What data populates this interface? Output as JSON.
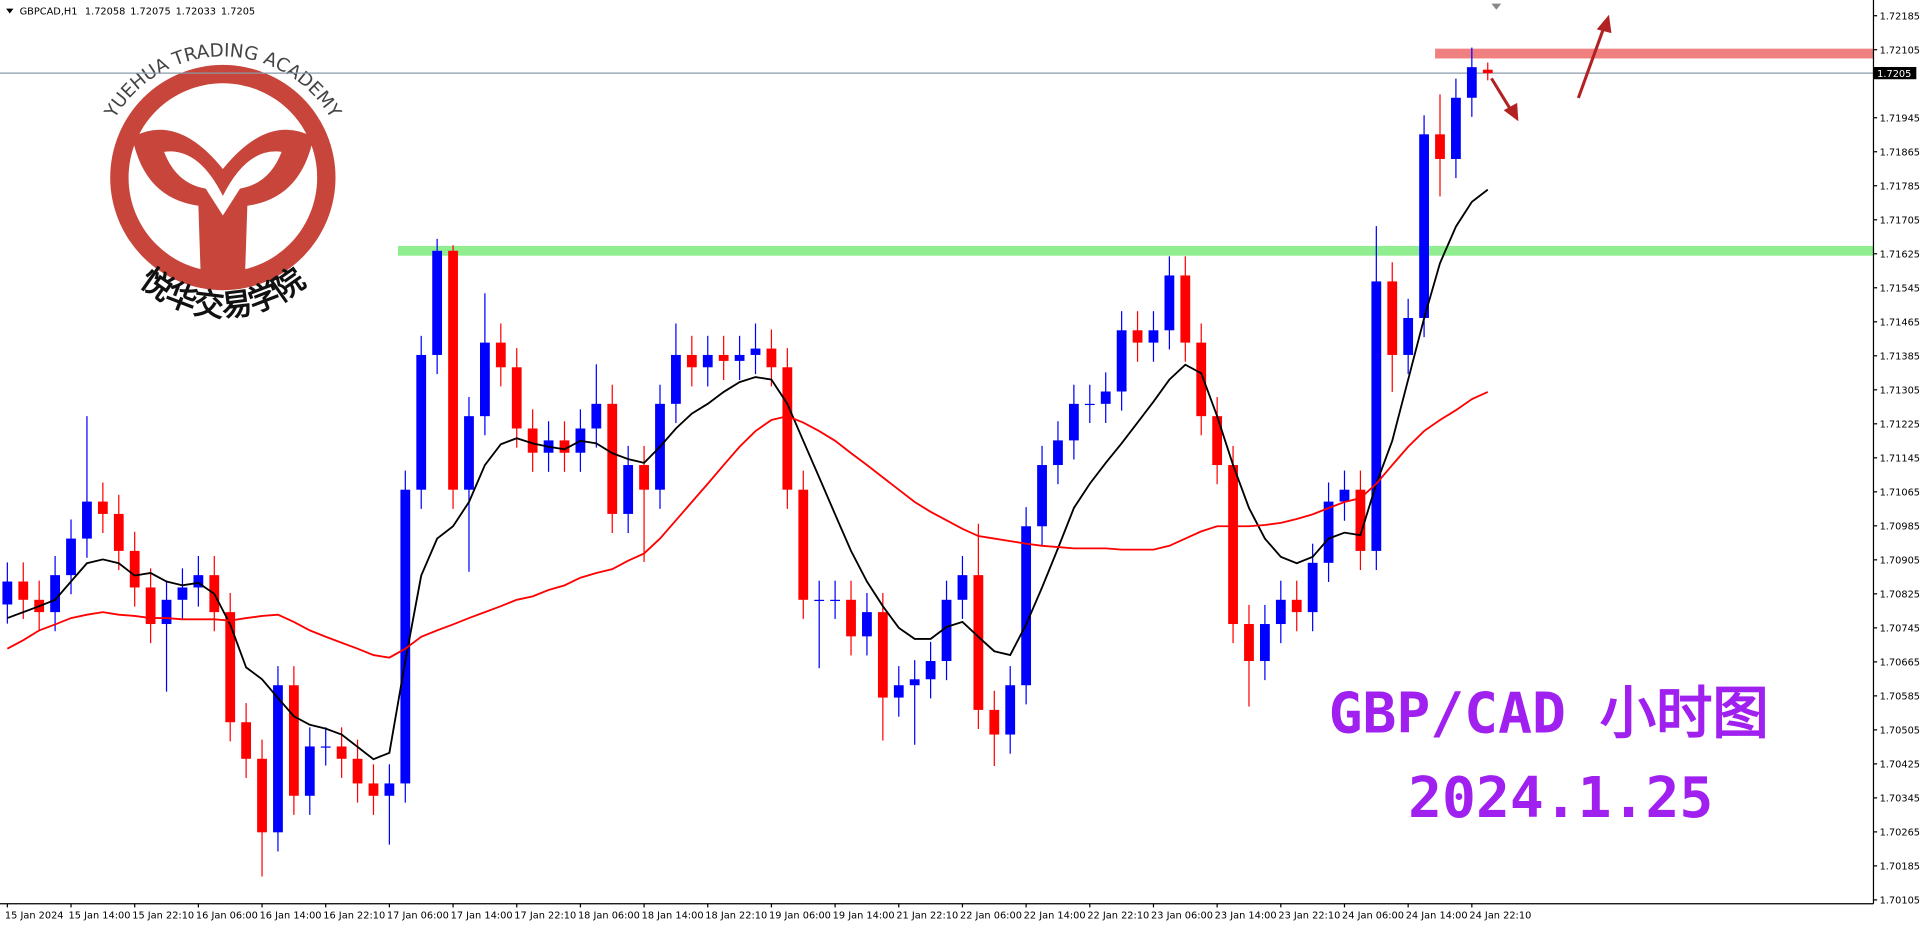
{
  "chart_data": {
    "type": "candlestick",
    "symbol": "GBPCAD,H1",
    "categories": [
      "15 Jan 2024",
      null,
      null,
      null,
      "15 Jan 14:00",
      null,
      null,
      null,
      "15 Jan 22:10",
      null,
      null,
      null,
      "16 Jan 06:00",
      null,
      null,
      null,
      "16 Jan 14:00",
      null,
      null,
      null,
      "16 Jan 22:10",
      null,
      null,
      null,
      "17 Jan 06:00",
      null,
      null,
      null,
      "17 Jan 14:00",
      null,
      null,
      null,
      "17 Jan 22:10",
      null,
      null,
      null,
      "18 Jan 06:00",
      null,
      null,
      null,
      "18 Jan 14:00",
      null,
      null,
      null,
      "18 Jan 22:10",
      null,
      null,
      null,
      "19 Jan 06:00",
      null,
      null,
      null,
      "19 Jan 14:00",
      null,
      null,
      null,
      "21 Jan 22:10",
      null,
      null,
      null,
      "22 Jan 06:00",
      null,
      null,
      null,
      "22 Jan 14:00",
      null,
      null,
      null,
      "22 Jan 22:10",
      null,
      null,
      null,
      "23 Jan 06:00",
      null,
      null,
      null,
      "23 Jan 14:00",
      null,
      null,
      null,
      "23 Jan 22:10",
      null,
      null,
      null,
      "24 Jan 06:00",
      null,
      null,
      null,
      "24 Jan 14:00",
      null,
      null,
      null,
      "24 Jan 22:10",
      null
    ],
    "open": [
      1.708,
      1.70854,
      1.70811,
      1.70782,
      1.70869,
      1.70955,
      1.71042,
      1.71013,
      1.70926,
      1.7084,
      1.70754,
      1.70811,
      1.7084,
      1.70869,
      1.70782,
      1.70523,
      1.70437,
      1.70264,
      1.7061,
      1.7035,
      1.70466,
      1.70466,
      1.70437,
      1.70379,
      1.7035,
      1.70379,
      1.7107,
      1.71387,
      1.71632,
      1.7107,
      1.71243,
      1.71416,
      1.71358,
      1.71214,
      1.71157,
      1.71186,
      1.71157,
      1.71214,
      1.71272,
      1.71013,
      1.71128,
      1.7107,
      1.71272,
      1.71387,
      1.71358,
      1.71387,
      1.71373,
      1.71387,
      1.71402,
      1.71358,
      1.7107,
      1.70811,
      1.70811,
      1.70811,
      1.70725,
      1.70782,
      1.70581,
      1.7061,
      1.70624,
      1.70667,
      1.70811,
      1.70869,
      1.70552,
      1.70494,
      1.7061,
      1.70984,
      1.71128,
      1.71186,
      1.71272,
      1.71272,
      1.71301,
      1.71445,
      1.71416,
      1.71445,
      1.71574,
      1.71416,
      1.71243,
      1.71128,
      1.70754,
      1.70667,
      1.70754,
      1.70811,
      1.70782,
      1.70898,
      1.71042,
      1.7107,
      1.70926,
      1.7156,
      1.71387,
      1.71474,
      1.71906,
      1.71848,
      1.71992,
      1.72058
    ],
    "high": [
      1.70899,
      1.70899,
      1.70856,
      1.70914,
      1.71,
      1.71243,
      1.71087,
      1.71058,
      1.70971,
      1.70885,
      1.70856,
      1.70885,
      1.70914,
      1.70914,
      1.70827,
      1.70568,
      1.70482,
      1.70655,
      1.70655,
      1.70511,
      1.70511,
      1.70511,
      1.70482,
      1.70424,
      1.70424,
      1.71115,
      1.71432,
      1.7166,
      1.71645,
      1.71288,
      1.71532,
      1.71461,
      1.71403,
      1.71259,
      1.71231,
      1.71231,
      1.71259,
      1.71365,
      1.71317,
      1.71173,
      1.71173,
      1.71317,
      1.71461,
      1.71432,
      1.71432,
      1.71432,
      1.71432,
      1.71461,
      1.71447,
      1.71403,
      1.71115,
      1.70856,
      1.70856,
      1.70856,
      1.70827,
      1.70827,
      1.70655,
      1.70669,
      1.70712,
      1.70856,
      1.70914,
      1.7099,
      1.70597,
      1.70655,
      1.71029,
      1.71173,
      1.71231,
      1.71317,
      1.71317,
      1.71346,
      1.7149,
      1.7149,
      1.7149,
      1.71619,
      1.71619,
      1.71461,
      1.71288,
      1.71173,
      1.70799,
      1.70799,
      1.70856,
      1.70856,
      1.70943,
      1.71087,
      1.71115,
      1.71115,
      1.7169,
      1.71605,
      1.71519,
      1.71951,
      1.72,
      1.72037,
      1.7211,
      1.72075
    ],
    "low": [
      1.70755,
      1.70766,
      1.70737,
      1.70737,
      1.70824,
      1.7091,
      1.70968,
      1.70881,
      1.70795,
      1.70709,
      1.70595,
      1.70766,
      1.70795,
      1.70737,
      1.70478,
      1.70392,
      1.7016,
      1.70219,
      1.70305,
      1.70305,
      1.70421,
      1.70392,
      1.70334,
      1.70305,
      1.70235,
      1.70334,
      1.71025,
      1.71342,
      1.71025,
      1.70877,
      1.71198,
      1.71313,
      1.71169,
      1.71112,
      1.71112,
      1.71112,
      1.71112,
      1.71169,
      1.70968,
      1.70968,
      1.709,
      1.71025,
      1.71227,
      1.71313,
      1.71313,
      1.71328,
      1.71328,
      1.71342,
      1.71313,
      1.71025,
      1.70766,
      1.7065,
      1.70766,
      1.7068,
      1.7068,
      1.7048,
      1.70536,
      1.7047,
      1.70579,
      1.70622,
      1.70766,
      1.70507,
      1.7042,
      1.70449,
      1.70565,
      1.70939,
      1.71083,
      1.71141,
      1.71227,
      1.71227,
      1.71256,
      1.71371,
      1.71371,
      1.714,
      1.71371,
      1.71198,
      1.71083,
      1.70709,
      1.7056,
      1.70622,
      1.70709,
      1.70737,
      1.70737,
      1.70853,
      1.70997,
      1.70881,
      1.70881,
      1.713,
      1.71342,
      1.71429,
      1.7176,
      1.71803,
      1.71947,
      1.72033
    ],
    "close": [
      1.70854,
      1.70811,
      1.70782,
      1.70869,
      1.70955,
      1.71042,
      1.71013,
      1.70926,
      1.7084,
      1.70754,
      1.70811,
      1.7084,
      1.70869,
      1.70782,
      1.70523,
      1.70437,
      1.70264,
      1.7061,
      1.7035,
      1.70466,
      1.70466,
      1.70437,
      1.70379,
      1.7035,
      1.70379,
      1.7107,
      1.71387,
      1.71632,
      1.7107,
      1.71243,
      1.71416,
      1.71358,
      1.71214,
      1.71157,
      1.71186,
      1.71157,
      1.71214,
      1.71272,
      1.71013,
      1.71128,
      1.7107,
      1.71272,
      1.71387,
      1.71358,
      1.71387,
      1.71373,
      1.71387,
      1.71402,
      1.71358,
      1.7107,
      1.70811,
      1.70811,
      1.70811,
      1.70725,
      1.70782,
      1.70581,
      1.7061,
      1.70624,
      1.70667,
      1.70811,
      1.70869,
      1.70552,
      1.70494,
      1.7061,
      1.70984,
      1.71128,
      1.71186,
      1.71272,
      1.71272,
      1.71301,
      1.71445,
      1.71416,
      1.71445,
      1.71574,
      1.71416,
      1.71243,
      1.71128,
      1.70754,
      1.70667,
      1.70754,
      1.70811,
      1.70782,
      1.70898,
      1.71042,
      1.7107,
      1.70926,
      1.7156,
      1.71387,
      1.71474,
      1.71906,
      1.71848,
      1.71992,
      1.72064,
      1.7205
    ],
    "up_color": "#0000ff",
    "down_color": "#ff0000",
    "lines": [
      {
        "color": "#000000",
        "values": [
          1.70768,
          1.70782,
          1.70796,
          1.70811,
          1.70854,
          1.70897,
          1.70906,
          1.70897,
          1.70868,
          1.70874,
          1.70854,
          1.70845,
          1.70851,
          1.70825,
          1.70753,
          1.70652,
          1.70624,
          1.7058,
          1.70537,
          1.70517,
          1.70508,
          1.70494,
          1.70465,
          1.70436,
          1.70451,
          1.70667,
          1.70868,
          1.70955,
          1.70984,
          1.71041,
          1.71128,
          1.71177,
          1.71191,
          1.71179,
          1.71171,
          1.71165,
          1.71185,
          1.71179,
          1.71156,
          1.71142,
          1.71133,
          1.71171,
          1.71214,
          1.71249,
          1.71272,
          1.713,
          1.71323,
          1.71335,
          1.71329,
          1.71272,
          1.71185,
          1.71099,
          1.71012,
          1.70926,
          1.70854,
          1.70796,
          1.70745,
          1.70719,
          1.70719,
          1.70747,
          1.70759,
          1.70724,
          1.7069,
          1.70681,
          1.70753,
          1.7084,
          1.70932,
          1.71027,
          1.71084,
          1.71133,
          1.71179,
          1.71228,
          1.71277,
          1.71329,
          1.71364,
          1.71344,
          1.71243,
          1.71128,
          1.71027,
          1.70955,
          1.70912,
          1.70897,
          1.70912,
          1.70955,
          1.70969,
          1.70963,
          1.71084,
          1.71185,
          1.71329,
          1.71473,
          1.71603,
          1.71689,
          1.71747,
          1.71776
        ]
      },
      {
        "color": "#ff0000",
        "values": [
          1.70696,
          1.70716,
          1.70739,
          1.70753,
          1.70768,
          1.70776,
          1.70782,
          1.70776,
          1.70773,
          1.70768,
          1.70768,
          1.70765,
          1.70765,
          1.70765,
          1.70762,
          1.70768,
          1.70773,
          1.70776,
          1.70759,
          1.70739,
          1.70724,
          1.7071,
          1.70696,
          1.70681,
          1.70675,
          1.70696,
          1.70724,
          1.70739,
          1.70753,
          1.70768,
          1.70782,
          1.70796,
          1.70811,
          1.70819,
          1.70834,
          1.70845,
          1.70863,
          1.70874,
          1.70883,
          1.70903,
          1.7092,
          1.70955,
          1.70998,
          1.71041,
          1.71084,
          1.71128,
          1.71171,
          1.71208,
          1.71234,
          1.71243,
          1.71228,
          1.71208,
          1.71185,
          1.71156,
          1.71128,
          1.71099,
          1.7107,
          1.71041,
          1.71018,
          1.70998,
          1.70978,
          1.70961,
          1.70955,
          1.70949,
          1.70943,
          1.70938,
          1.70935,
          1.70932,
          1.70932,
          1.70932,
          1.70929,
          1.70929,
          1.70929,
          1.70938,
          1.70955,
          1.70972,
          1.70984,
          1.70984,
          1.70984,
          1.70987,
          1.70992,
          1.71001,
          1.71012,
          1.71027,
          1.71041,
          1.7105,
          1.71084,
          1.71128,
          1.71171,
          1.71208,
          1.71234,
          1.71257,
          1.71283,
          1.713
        ]
      }
    ],
    "levels": [
      {
        "value": 1.71632,
        "color": "#90ee90"
      },
      {
        "value": 1.72096,
        "color": "#f08080"
      }
    ],
    "ylim": [
      1.70096,
      1.72222
    ],
    "yticks": [
      1.72185,
      1.72105,
      1.71945,
      1.71865,
      1.71785,
      1.71705,
      1.71625,
      1.71545,
      1.71465,
      1.71385,
      1.71305,
      1.71225,
      1.71145,
      1.71065,
      1.70985,
      1.70905,
      1.70825,
      1.70745,
      1.70665,
      1.70585,
      1.70505,
      1.70425,
      1.70345,
      1.70265,
      1.70185,
      1.70105
    ],
    "annotations": [
      "YUEHUA TRADING ACADEMY",
      "悦华交易学院",
      "GBP/CAD 小时图",
      "2024.1.25"
    ]
  }
}
